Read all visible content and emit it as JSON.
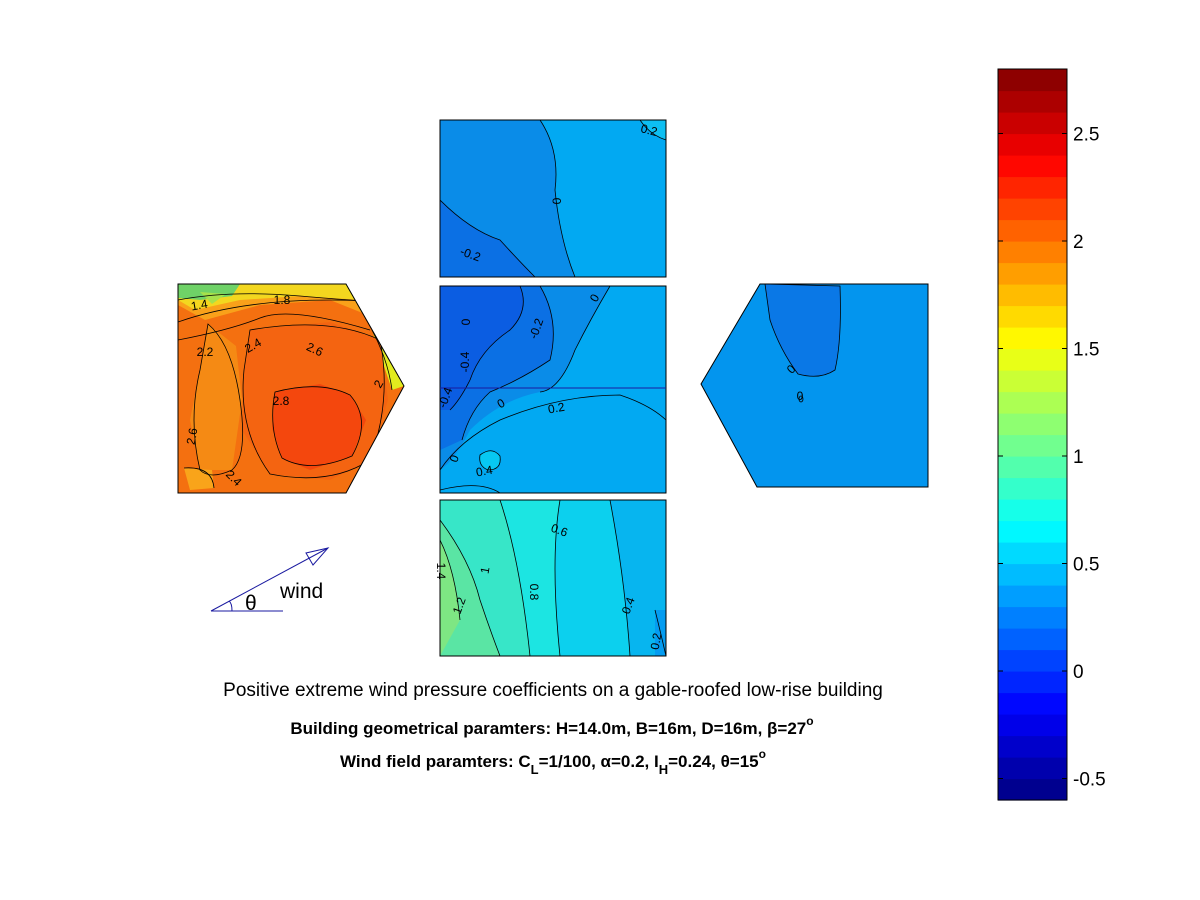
{
  "chart_data": {
    "type": "heatmap",
    "title": "Positive extreme wind pressure coefficients on a gable-roofed low-rise building",
    "subtitle_geometry": "Building geometrical paramters: H=14.0m, B=16m, D=16m, β=27",
    "subtitle_geometry_sup": "o",
    "subtitle_wind_parts": [
      "Wind field paramters: C",
      "L",
      "=1/100, α=0.2, I",
      "H",
      "=0.24, θ=15",
      "o"
    ],
    "colorbar": {
      "min": -0.6,
      "max": 2.8,
      "levels": 34,
      "ticks": [
        "-0.5",
        "0",
        "0.5",
        "1",
        "1.5",
        "2",
        "2.5"
      ],
      "tick_values": [
        -0.5,
        0,
        0.5,
        1,
        1.5,
        2,
        2.5
      ]
    },
    "wind_indicator": {
      "label": "wind",
      "angle_label": "θ"
    },
    "panels": [
      {
        "face": "windward-wall",
        "levels": [
          {
            "v": 1.4,
            "label": "1.4"
          },
          {
            "v": 1.8,
            "label": "1.8"
          },
          {
            "v": 2.2,
            "label": "2.2"
          },
          {
            "v": 2.4,
            "label": "2.4"
          },
          {
            "v": 2.6,
            "label": "2.6"
          },
          {
            "v": 2.8,
            "label": "2.8"
          },
          {
            "v": 2.6,
            "label": "2.6"
          },
          {
            "v": 2.4,
            "label": "2.4"
          },
          {
            "v": 2,
            "label": "2"
          }
        ]
      },
      {
        "face": "side-wall-top",
        "levels": [
          {
            "v": 0.2,
            "label": "0.2"
          },
          {
            "v": 0,
            "label": "0"
          },
          {
            "v": -0.2,
            "label": "-0.2"
          }
        ]
      },
      {
        "face": "roof",
        "levels": [
          {
            "v": 0,
            "label": "0"
          },
          {
            "v": -0.2,
            "label": "-0.2"
          },
          {
            "v": 0,
            "label": "0"
          },
          {
            "v": -0.4,
            "label": "-0.4"
          },
          {
            "v": -0.4,
            "label": "-0.4"
          },
          {
            "v": 0,
            "label": "0"
          },
          {
            "v": 0.2,
            "label": "0.2"
          },
          {
            "v": 0,
            "label": "0"
          },
          {
            "v": 0.4,
            "label": "0.4"
          }
        ]
      },
      {
        "face": "side-wall-bottom",
        "levels": [
          {
            "v": 0.6,
            "label": "0.6"
          },
          {
            "v": 1,
            "label": "1"
          },
          {
            "v": 1.4,
            "label": "1.4"
          },
          {
            "v": 1.2,
            "label": "1.2"
          },
          {
            "v": 0.8,
            "label": "0.8"
          },
          {
            "v": 0.4,
            "label": "0.4"
          },
          {
            "v": 0.2,
            "label": "0.2"
          }
        ]
      },
      {
        "face": "leeward-wall",
        "levels": [
          {
            "v": 0,
            "label": "0"
          },
          {
            "v": 0,
            "label": "0"
          }
        ]
      }
    ]
  }
}
